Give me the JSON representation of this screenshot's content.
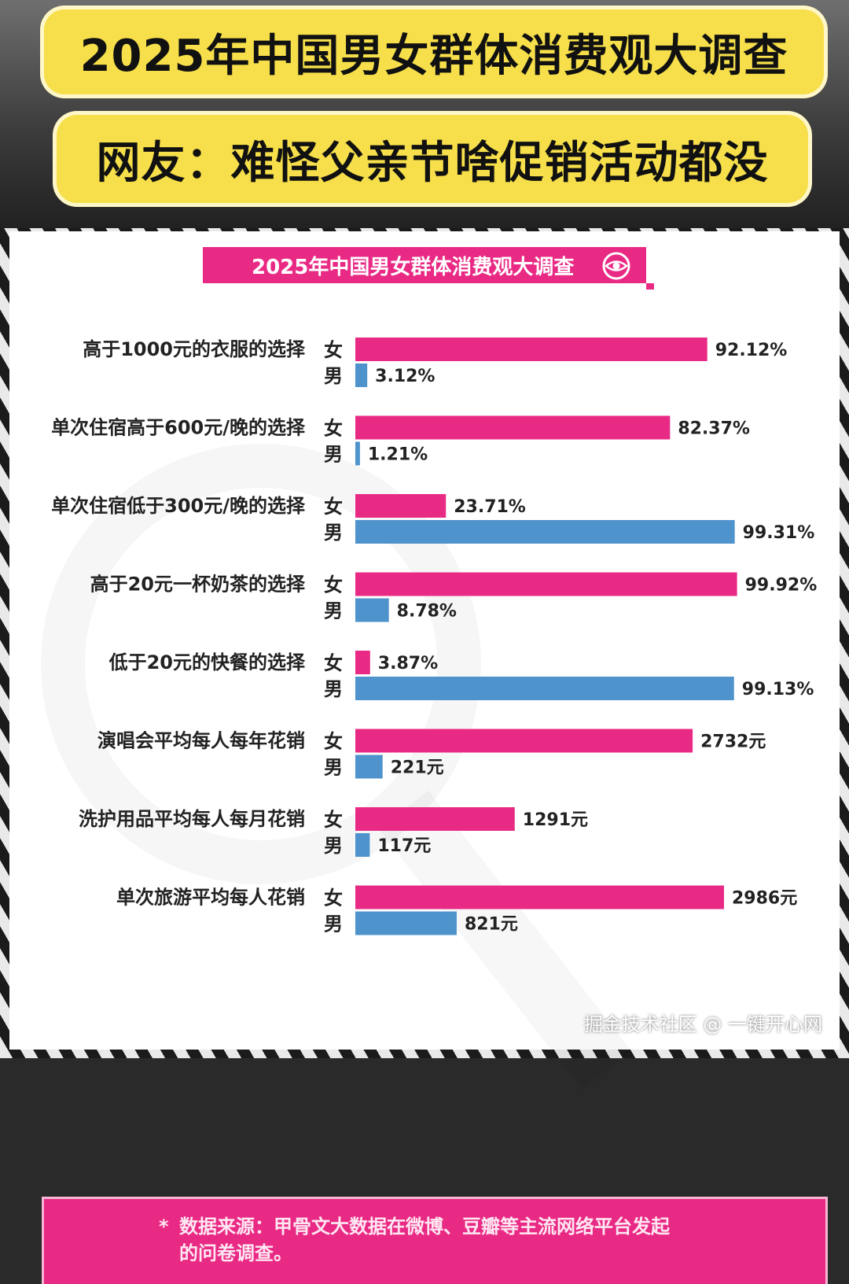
{
  "headline": {
    "line1": "2025年中国男女群体消费观大调查",
    "line2": "网友：难怪父亲节啥促销活动都没"
  },
  "panel": {
    "title": "2025年中国男女群体消费观大调查"
  },
  "chart_data": {
    "type": "bar",
    "orientation": "horizontal",
    "title": "2025年中国男女群体消费观大调查",
    "categories": [
      "高于1000元的衣服的选择",
      "单次住宿高于600元/晚的选择",
      "单次住宿低于300元/晚的选择",
      "高于20元一杯奶茶的选择",
      "低于20元的快餐的选择",
      "演唱会平均每人每年花销",
      "洗护用品平均每人每月花销",
      "单次旅游平均每人花销"
    ],
    "series": [
      {
        "name": "女",
        "color": "#e92a85",
        "values": [
          92.12,
          82.37,
          23.71,
          99.92,
          3.87,
          2732,
          1291,
          2986
        ],
        "labels": [
          "92.12%",
          "82.37%",
          "23.71%",
          "99.92%",
          "3.87%",
          "2732元",
          "1291元",
          "2986元"
        ]
      },
      {
        "name": "男",
        "color": "#4f93cc",
        "values": [
          3.12,
          1.21,
          99.31,
          8.78,
          99.13,
          221,
          117,
          821
        ],
        "labels": [
          "3.12%",
          "1.21%",
          "99.31%",
          "8.78%",
          "99.13%",
          "221元",
          "117元",
          "821元"
        ]
      }
    ],
    "grid": false,
    "legend": "none"
  },
  "footer": {
    "star": "*",
    "note": "数据来源：甲骨文大数据在微博、豆瓣等主流网络平台发起的问卷调查。"
  },
  "watermark": {
    "text": "掘金技术社区 @ 一键开心网"
  }
}
